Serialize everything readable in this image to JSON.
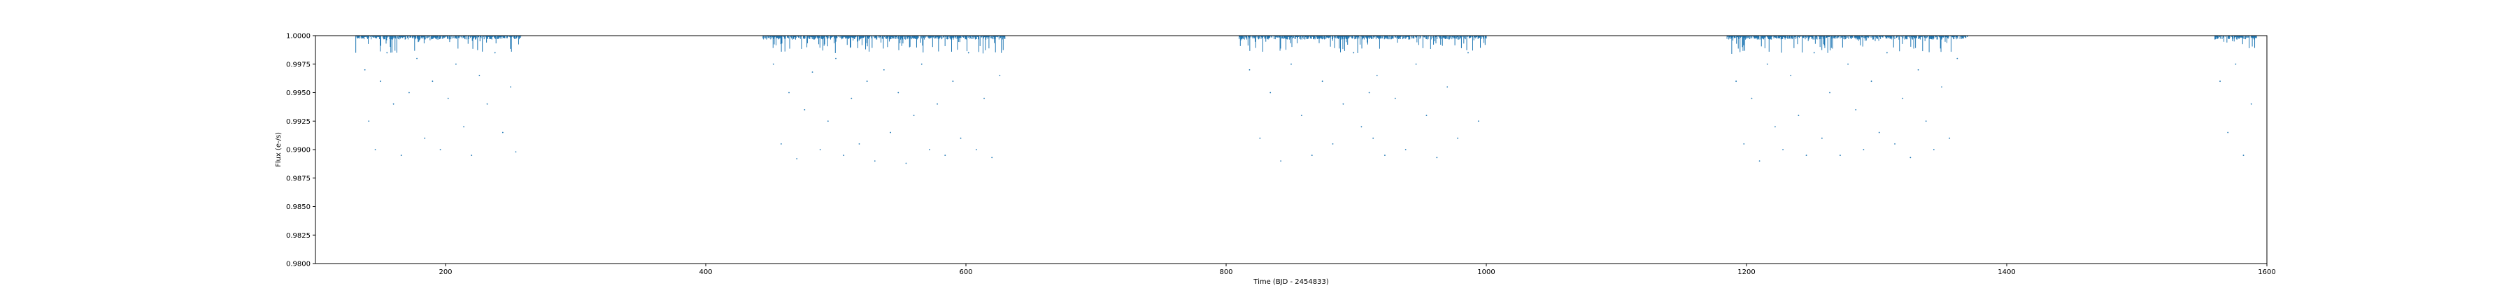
{
  "chart_data": {
    "type": "scatter",
    "xlabel": "Time (BJD - 2454833)",
    "ylabel": "Flux (e-/s)",
    "xlim": [
      100,
      1600
    ],
    "ylim": [
      0.98,
      1.0
    ],
    "x_ticks": [
      200,
      400,
      600,
      800,
      1000,
      1200,
      1400,
      1600
    ],
    "y_ticks": [
      0.98,
      0.9825,
      0.985,
      0.9875,
      0.99,
      0.9925,
      0.995,
      0.9975,
      1.0
    ],
    "x_tick_labels": [
      "200",
      "400",
      "600",
      "800",
      "1000",
      "1200",
      "1400",
      "1600"
    ],
    "y_tick_labels": [
      "0.9800",
      "0.9825",
      "0.9850",
      "0.9875",
      "0.9900",
      "0.9925",
      "0.9950",
      "0.9975",
      "1.0000"
    ],
    "grid": false,
    "marker_color": "#1f77b4",
    "segments": [
      {
        "x_start": 131,
        "x_end": 258
      },
      {
        "x_start": 444,
        "x_end": 630
      },
      {
        "x_start": 810,
        "x_end": 1000
      },
      {
        "x_start": 1185,
        "x_end": 1370
      },
      {
        "x_start": 1560,
        "x_end": 1592
      }
    ],
    "series": [
      {
        "points": [
          [
            138,
            0.997
          ],
          [
            141,
            0.9925
          ],
          [
            146,
            0.99
          ],
          [
            150,
            0.996
          ],
          [
            155,
            0.9985
          ],
          [
            160,
            0.994
          ],
          [
            166,
            0.9895
          ],
          [
            172,
            0.995
          ],
          [
            178,
            0.998
          ],
          [
            184,
            0.991
          ],
          [
            190,
            0.996
          ],
          [
            196,
            0.99
          ],
          [
            202,
            0.9945
          ],
          [
            208,
            0.9975
          ],
          [
            214,
            0.992
          ],
          [
            220,
            0.9895
          ],
          [
            226,
            0.9965
          ],
          [
            232,
            0.994
          ],
          [
            238,
            0.9985
          ],
          [
            244,
            0.9915
          ],
          [
            250,
            0.9955
          ],
          [
            254,
            0.9898
          ],
          [
            452,
            0.9975
          ],
          [
            458,
            0.9905
          ],
          [
            464,
            0.995
          ],
          [
            470,
            0.9892
          ],
          [
            476,
            0.9935
          ],
          [
            482,
            0.9968
          ],
          [
            488,
            0.99
          ],
          [
            494,
            0.9925
          ],
          [
            500,
            0.998
          ],
          [
            506,
            0.9895
          ],
          [
            512,
            0.9945
          ],
          [
            518,
            0.9905
          ],
          [
            524,
            0.996
          ],
          [
            530,
            0.989
          ],
          [
            537,
            0.997
          ],
          [
            542,
            0.9915
          ],
          [
            548,
            0.995
          ],
          [
            554,
            0.9888
          ],
          [
            560,
            0.993
          ],
          [
            566,
            0.9975
          ],
          [
            572,
            0.99
          ],
          [
            578,
            0.994
          ],
          [
            584,
            0.9895
          ],
          [
            590,
            0.996
          ],
          [
            596,
            0.991
          ],
          [
            602,
            0.9985
          ],
          [
            608,
            0.99
          ],
          [
            614,
            0.9945
          ],
          [
            620,
            0.9893
          ],
          [
            626,
            0.9965
          ],
          [
            818,
            0.997
          ],
          [
            826,
            0.991
          ],
          [
            834,
            0.995
          ],
          [
            842,
            0.989
          ],
          [
            850,
            0.9975
          ],
          [
            858,
            0.993
          ],
          [
            866,
            0.9895
          ],
          [
            874,
            0.996
          ],
          [
            882,
            0.9905
          ],
          [
            890,
            0.994
          ],
          [
            898,
            0.9985
          ],
          [
            904,
            0.992
          ],
          [
            910,
            0.995
          ],
          [
            913,
            0.991
          ],
          [
            916,
            0.9965
          ],
          [
            922,
            0.9895
          ],
          [
            930,
            0.9945
          ],
          [
            938,
            0.99
          ],
          [
            946,
            0.9975
          ],
          [
            954,
            0.993
          ],
          [
            962,
            0.9893
          ],
          [
            970,
            0.9955
          ],
          [
            978,
            0.991
          ],
          [
            986,
            0.9985
          ],
          [
            994,
            0.9925
          ],
          [
            1192,
            0.996
          ],
          [
            1198,
            0.9905
          ],
          [
            1204,
            0.9945
          ],
          [
            1210,
            0.989
          ],
          [
            1216,
            0.9975
          ],
          [
            1222,
            0.992
          ],
          [
            1228,
            0.99
          ],
          [
            1234,
            0.9965
          ],
          [
            1240,
            0.993
          ],
          [
            1246,
            0.9895
          ],
          [
            1252,
            0.9985
          ],
          [
            1258,
            0.991
          ],
          [
            1264,
            0.995
          ],
          [
            1272,
            0.9895
          ],
          [
            1278,
            0.9975
          ],
          [
            1284,
            0.9935
          ],
          [
            1290,
            0.99
          ],
          [
            1296,
            0.996
          ],
          [
            1302,
            0.9915
          ],
          [
            1308,
            0.9985
          ],
          [
            1314,
            0.9905
          ],
          [
            1320,
            0.9945
          ],
          [
            1326,
            0.9893
          ],
          [
            1332,
            0.997
          ],
          [
            1338,
            0.9925
          ],
          [
            1344,
            0.99
          ],
          [
            1350,
            0.9955
          ],
          [
            1356,
            0.991
          ],
          [
            1362,
            0.998
          ],
          [
            1564,
            0.996
          ],
          [
            1570,
            0.9915
          ],
          [
            1576,
            0.9975
          ],
          [
            1582,
            0.9895
          ],
          [
            1588,
            0.994
          ]
        ]
      }
    ]
  }
}
